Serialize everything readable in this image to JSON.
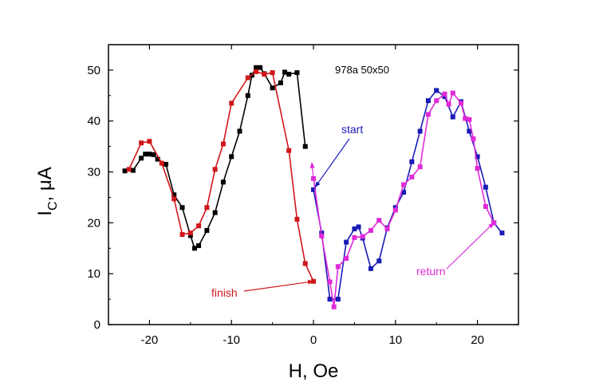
{
  "chart_data": {
    "type": "line",
    "sample_label": "978a 50x50",
    "xlabel": "H, Oe",
    "ylabel": {
      "main": "I",
      "sub": "C",
      "rest": ", μA"
    },
    "xlim": [
      -25,
      25
    ],
    "ylim": [
      0,
      55
    ],
    "x_ticks": [
      -20,
      -10,
      0,
      10,
      20
    ],
    "y_ticks": [
      0,
      10,
      20,
      30,
      40,
      50
    ],
    "grid": false,
    "series": [
      {
        "color": "#000000",
        "x": [
          -23,
          -22,
          -21,
          -20.5,
          -20,
          -19.5,
          -19,
          -18,
          -17,
          -16,
          -15,
          -14.5,
          -14,
          -13,
          -12,
          -11,
          -10,
          -9,
          -8,
          -7.5,
          -7,
          -6.5,
          -6,
          -5,
          -4,
          -3.5,
          -3,
          -2,
          -1
        ],
        "y": [
          30.2,
          30.3,
          32.7,
          33.5,
          33.5,
          33.4,
          32.5,
          31.5,
          25.5,
          23,
          17.5,
          15,
          15.5,
          18.5,
          22,
          28,
          33,
          38,
          45,
          49,
          50.5,
          50.5,
          49.3,
          46.5,
          47.5,
          49.6,
          49.2,
          49.5,
          35
        ]
      },
      {
        "color": "#d0161a",
        "x": [
          -22.5,
          -21,
          -20,
          -18.5,
          -17,
          -16,
          -15,
          -14,
          -13,
          -12,
          -11,
          -10,
          -8,
          -7,
          -6,
          -5,
          -3,
          -2,
          -1,
          0
        ],
        "y": [
          30.5,
          35.7,
          36,
          31.7,
          24.7,
          17.7,
          18,
          19.4,
          23,
          30.5,
          35.5,
          43.5,
          48.5,
          49.7,
          49.2,
          49.5,
          34.2,
          20.7,
          12,
          8.5
        ]
      },
      {
        "color": "#1a1ab8",
        "x": [
          0,
          1,
          2,
          3,
          4,
          5,
          5.5,
          6,
          7,
          8,
          9,
          10,
          11,
          12,
          13,
          14,
          15,
          16,
          17,
          18,
          19,
          20,
          21,
          22,
          23
        ],
        "y": [
          26.5,
          18,
          5,
          5,
          16.2,
          18.8,
          19.2,
          17,
          11,
          12.5,
          19,
          23,
          26,
          32,
          38,
          44,
          46,
          44.8,
          40.8,
          43.8,
          38,
          33,
          27,
          20,
          18
        ]
      },
      {
        "color": "#e02ad8",
        "x": [
          22,
          21,
          20,
          19.5,
          19,
          18.5,
          18,
          17,
          16.5,
          16,
          15,
          14,
          13,
          12,
          11,
          10,
          9,
          8,
          7,
          6,
          5,
          4,
          3,
          2.5,
          2,
          1,
          0
        ],
        "y": [
          20,
          23.2,
          30.7,
          36.5,
          40.3,
          40.5,
          43.5,
          45.5,
          43.3,
          45.3,
          44,
          41.3,
          31,
          29,
          27.5,
          22.5,
          18.8,
          20.5,
          18.5,
          17.3,
          17.1,
          13,
          11.4,
          3.5,
          8.4,
          17.4,
          28.7
        ]
      }
    ],
    "annotations": [
      {
        "text": "start",
        "color": "#1a1ab8",
        "arrow_to": [
          0.2,
          27.0
        ]
      },
      {
        "text": "finish",
        "color": "#d0161a",
        "arrow_to": [
          0.0,
          8.5
        ]
      },
      {
        "text": "return",
        "color": "#e02ad8",
        "arrow_to": [
          22.0,
          20.0
        ]
      }
    ]
  }
}
